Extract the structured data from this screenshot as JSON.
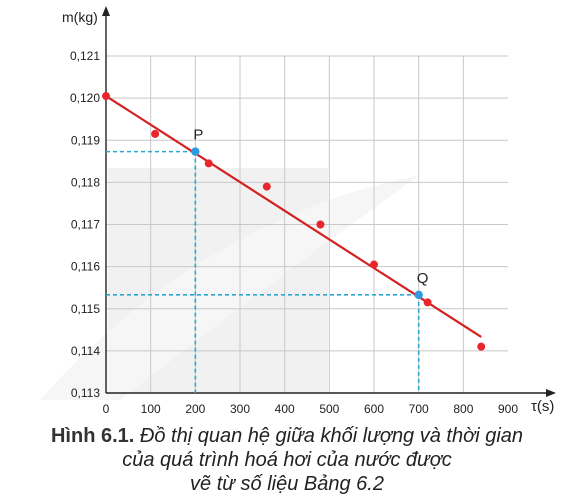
{
  "chart_data": {
    "type": "scatter",
    "ylabel": "m(kg)",
    "xlabel": "τ(s)",
    "xlim": [
      0,
      900
    ],
    "ylim": [
      0.113,
      0.121
    ],
    "x_ticks": [
      "0",
      "100",
      "200",
      "300",
      "400",
      "500",
      "600",
      "700",
      "800",
      "900"
    ],
    "y_ticks": [
      "0,113",
      "0,114",
      "0,115",
      "0,116",
      "0,117",
      "0,118",
      "0,119",
      "0,120",
      "0,121"
    ],
    "grid": true,
    "series": [
      {
        "kind": "points",
        "color": "#e8262b",
        "points": [
          {
            "x": 0,
            "y": 0.12005
          },
          {
            "x": 110,
            "y": 0.11915
          },
          {
            "x": 230,
            "y": 0.11845
          },
          {
            "x": 360,
            "y": 0.1179
          },
          {
            "x": 480,
            "y": 0.117
          },
          {
            "x": 600,
            "y": 0.11605
          },
          {
            "x": 720,
            "y": 0.11515
          },
          {
            "x": 840,
            "y": 0.1141
          }
        ]
      },
      {
        "kind": "fit-line",
        "color": "#d42020",
        "start": {
          "x": 0,
          "y": 0.12005
        },
        "end": {
          "x": 840,
          "y": 0.11433
        }
      }
    ],
    "annotations": [
      {
        "label": "P",
        "x": 200,
        "y": 0.11873,
        "color": "#2e9be0"
      },
      {
        "label": "Q",
        "x": 700,
        "y": 0.11533,
        "color": "#2e9be0"
      }
    ]
  },
  "caption": {
    "label": "Hình 6.1.",
    "text_line1": "Đồ thị quan hệ giữa khối lượng và thời gian",
    "text_line2": "của quá trình hoá hơi của nước được",
    "text_line3": "vẽ từ số liệu Bảng 6.2"
  },
  "colors": {
    "data_points": "#e8262b",
    "fit_line": "#d42020",
    "guide_lines": "#2aa7d6",
    "grid": "#c8c8c8",
    "axis": "#222222"
  }
}
